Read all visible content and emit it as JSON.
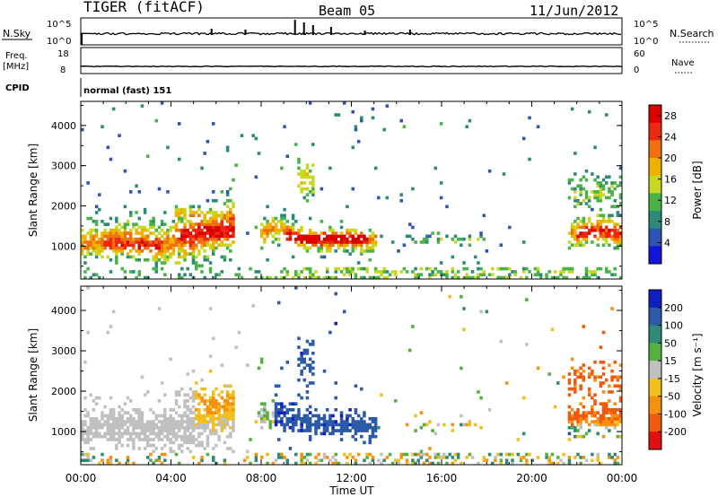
{
  "header": {
    "station": "TIGER (fitACF)",
    "beam": "Beam 05",
    "date": "11/Jun/2012"
  },
  "nsky_panel": {
    "left_label": "N.Sky",
    "left_ticks": [
      "10^5",
      "10^0"
    ],
    "right_ticks": [
      "10^5",
      "10^0"
    ],
    "right_label": "N.Search"
  },
  "freq_panel": {
    "left_label_line1": "Freq.",
    "left_label_line2": "[MHz]",
    "left_ticks": [
      "18",
      "8"
    ],
    "right_ticks": [
      "60",
      "0"
    ],
    "right_label": "Nave"
  },
  "cpid": {
    "label": "CPID",
    "value": "normal (fast) 151"
  },
  "colors": {
    "power_scale": [
      "#1414d8",
      "#2d55b4",
      "#2e8a78",
      "#49b348",
      "#c8d820",
      "#f0b000",
      "#f07010",
      "#ea2a10",
      "#dd0000"
    ],
    "velocity_scale": [
      "#1020c0",
      "#2a5aa8",
      "#2f8a78",
      "#55b040",
      "#c0c0c0",
      "#f0c020",
      "#f59010",
      "#ef5a10",
      "#e01010"
    ]
  },
  "chart_data": [
    {
      "type": "heatmap",
      "title": "",
      "xlabel": "Time UT",
      "ylabel": "Slant Range [km]",
      "xlim": [
        "00:00",
        "24:00"
      ],
      "ylim": [
        180,
        4600
      ],
      "x_ticks": [
        "00:00",
        "04:00",
        "08:00",
        "12:00",
        "16:00",
        "20:00",
        "00:00"
      ],
      "y_ticks": [
        "1000",
        "2000",
        "3000",
        "4000"
      ],
      "colorbar": {
        "label": "Power [dB]",
        "ticks": [
          "28",
          "24",
          "20",
          "16",
          "12",
          "8",
          "4"
        ],
        "range": [
          0,
          30
        ]
      },
      "features": [
        {
          "name": "morning ionospheric echoes",
          "t_start_h": 0.0,
          "t_end_h": 6.5,
          "range_km": [
            700,
            1800
          ],
          "peak_power_db": 26
        },
        {
          "name": "band near 09-12 UT",
          "t_start_h": 8.0,
          "t_end_h": 12.8,
          "range_km": [
            900,
            1500
          ],
          "peak_power_db": 28
        },
        {
          "name": "evening echoes",
          "t_start_h": 21.7,
          "t_end_h": 24.0,
          "range_km": [
            900,
            1900
          ],
          "peak_power_db": 24
        }
      ]
    },
    {
      "type": "heatmap",
      "title": "",
      "xlabel": "Time UT",
      "ylabel": "Slant Range [km]",
      "xlim": [
        "00:00",
        "24:00"
      ],
      "ylim": [
        180,
        4600
      ],
      "x_ticks": [
        "00:00",
        "04:00",
        "08:00",
        "12:00",
        "16:00",
        "20:00",
        "00:00"
      ],
      "y_ticks": [
        "1000",
        "2000",
        "3000",
        "4000"
      ],
      "colorbar": {
        "label": "Velocity [m s⁻¹]",
        "ticks": [
          "200",
          "100",
          "50",
          "15",
          "-15",
          "-50",
          "-100",
          "-200"
        ],
        "range": [
          -250,
          250
        ]
      },
      "features": [
        {
          "name": "ground scatter 00-07 UT",
          "t_start_h": 0.0,
          "t_end_h": 7.2,
          "range_km": [
            700,
            1700
          ],
          "velocity_ms": 0
        },
        {
          "name": "approaching flow 08-13 UT",
          "t_start_h": 8.0,
          "t_end_h": 13.0,
          "range_km": [
            900,
            1700
          ],
          "velocity_ms": 180
        },
        {
          "name": "receding flow 22-24 UT",
          "t_start_h": 21.8,
          "t_end_h": 24.0,
          "range_km": [
            1000,
            2200
          ],
          "velocity_ms": -150
        }
      ]
    }
  ]
}
